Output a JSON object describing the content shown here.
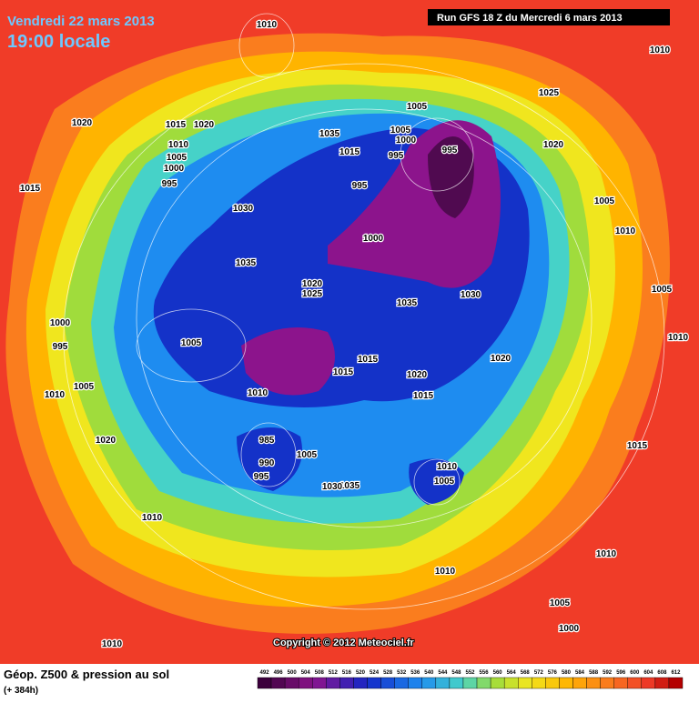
{
  "header": {
    "date": "Vendredi 22 mars 2013",
    "time": "19:00 locale",
    "run": "Run GFS 18 Z du Mercredi 6 mars 2013"
  },
  "footer": {
    "title": "Géop. Z500 & pression au sol",
    "lead": "(+ 384h)",
    "copyright": "Copyright © 2012 Meteociel.fr"
  },
  "isobar_labels": [
    "1010",
    "1010",
    "1025",
    "1005",
    "1020",
    "1015",
    "1020",
    "1035",
    "1005",
    "1000",
    "995",
    "1020",
    "1010",
    "1005",
    "1000",
    "1015",
    "995",
    "1015",
    "995",
    "995",
    "1005",
    "1030",
    "1010",
    "1000",
    "1035",
    "1020",
    "1030",
    "1025",
    "1005",
    "1035",
    "1000",
    "995",
    "1005",
    "1010",
    "1015",
    "1020",
    "1015",
    "1020",
    "1005",
    "1010",
    "1010",
    "1015",
    "1020",
    "985",
    "1015",
    "1005",
    "1010",
    "990",
    "1005",
    "995",
    "1035",
    "1030",
    "1010",
    "1010",
    "1010",
    "1005",
    "1000",
    "1010"
  ],
  "legend": {
    "values": [
      492,
      496,
      500,
      504,
      508,
      512,
      516,
      520,
      524,
      528,
      532,
      536,
      540,
      544,
      548,
      552,
      556,
      560,
      564,
      568,
      572,
      576,
      580,
      584,
      588,
      592,
      596,
      600,
      604,
      608,
      612
    ]
  }
}
